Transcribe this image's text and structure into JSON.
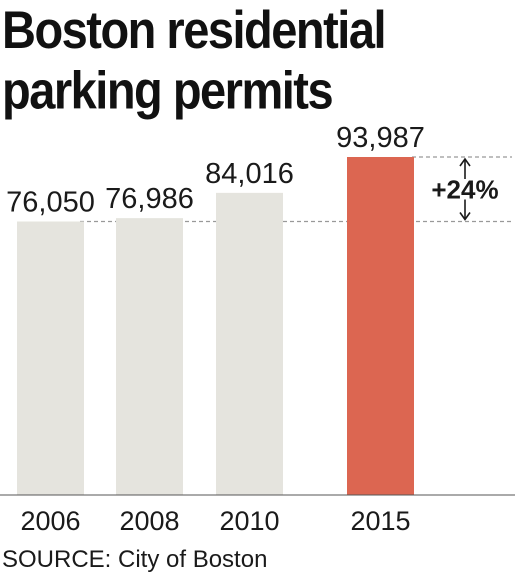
{
  "title": "Boston residential parking permits",
  "source": "SOURCE: City of Boston",
  "annotation": "+24%",
  "colors": {
    "bar": "#e5e4de",
    "highlight": "#dc6651",
    "text": "#1a1a1a",
    "axis": "#555555",
    "dashed": "#999999"
  },
  "chart_data": {
    "type": "bar",
    "categories": [
      "2006",
      "2008",
      "2010",
      "2015"
    ],
    "values": [
      76050,
      76986,
      84016,
      93987
    ],
    "value_labels": [
      "76,050",
      "76,986",
      "84,016",
      "93,987"
    ],
    "highlight_index": 3,
    "ylim": [
      0,
      93987
    ],
    "xlabel": "",
    "ylabel": "",
    "grid": false,
    "annotations": [
      {
        "text": "+24%",
        "from_value": 76050,
        "to_value": 93987
      }
    ]
  }
}
